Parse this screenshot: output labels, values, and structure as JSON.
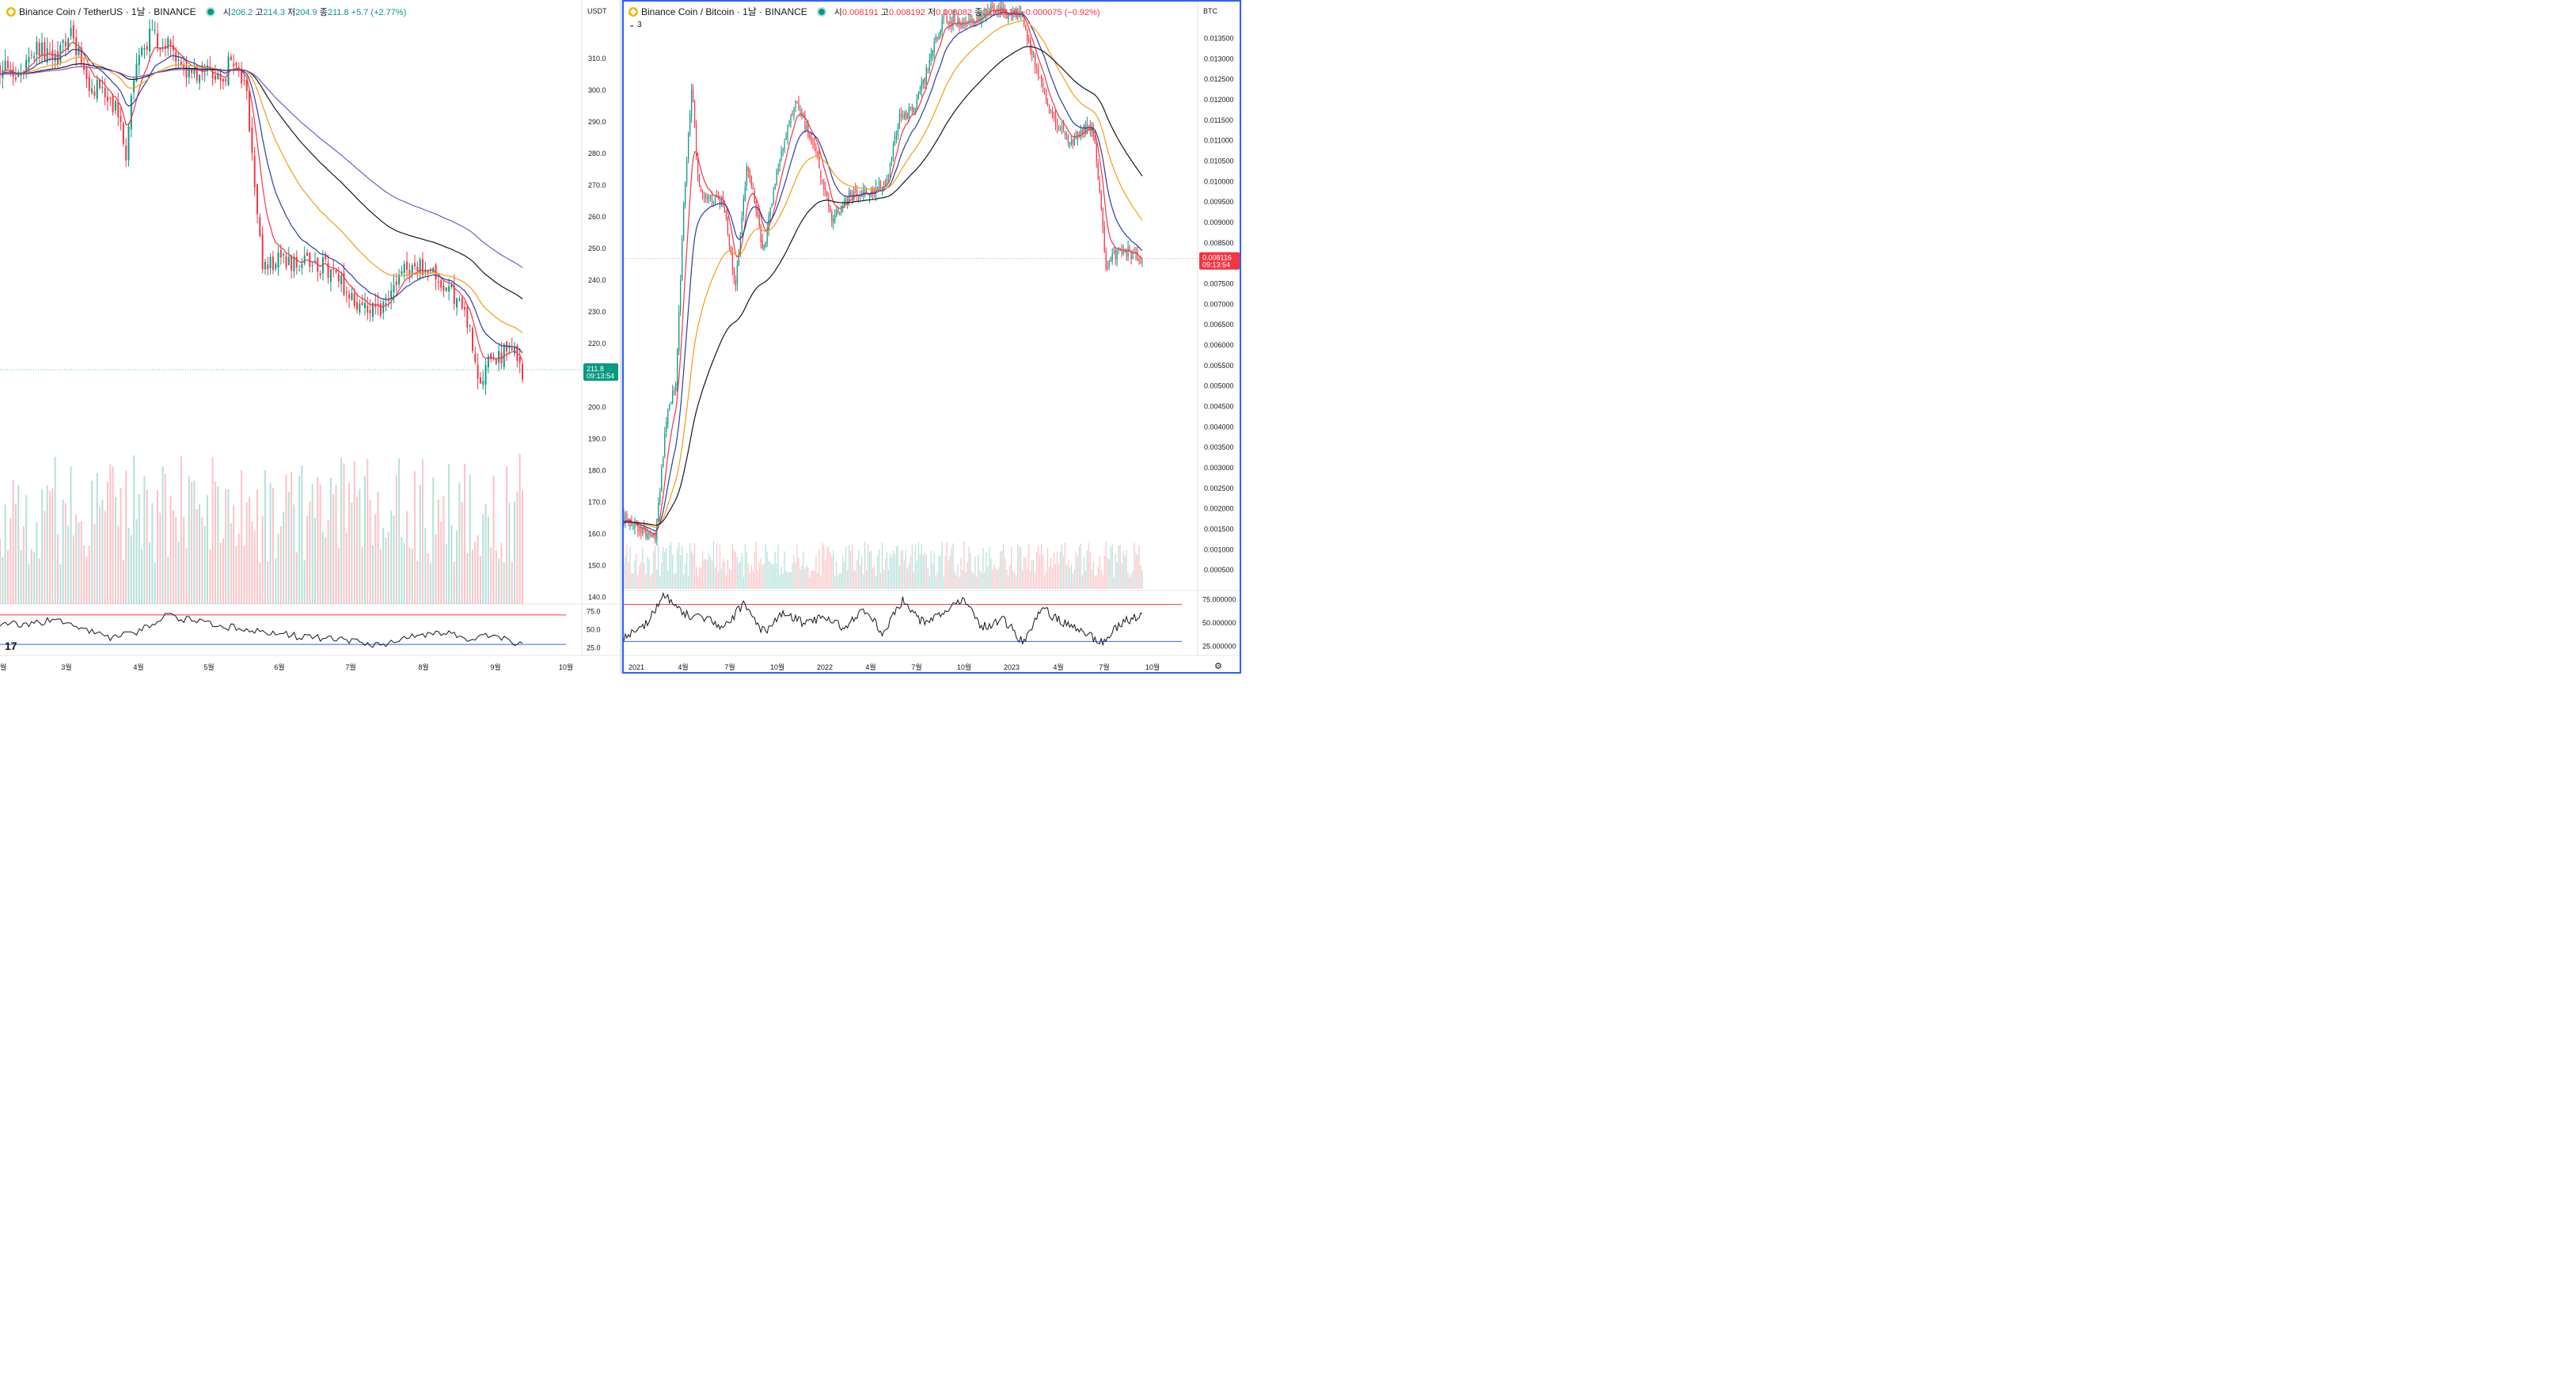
{
  "left": {
    "symbol": "Binance Coin / TetherUS · 1날 · BINANCE",
    "ohlc": {
      "o_label": "시",
      "o": "206.2",
      "h_label": "고",
      "h": "214.3",
      "l_label": "저",
      "l": "204.9",
      "c_label": "종",
      "c": "211.8",
      "chg": "+5.7 (+2.77%)"
    },
    "unit": "USDT",
    "last_price": "211.8",
    "countdown": "09:13:54",
    "rsi_ticks": [
      "75.0",
      "50.0",
      "25.0"
    ],
    "x_ticks": [
      "월",
      "3월",
      "4월",
      "5월",
      "6월",
      "7월",
      "8월",
      "9월",
      "10월"
    ]
  },
  "right": {
    "symbol": "Binance Coin / Bitcoin · 1날 · BINANCE",
    "ohlc": {
      "o_label": "시",
      "o": "0.008191",
      "h_label": "고",
      "h": "0.008192",
      "l_label": "저",
      "l": "0.008082",
      "c_label": "종",
      "c": "0.008116",
      "chg": "−0.000075 (−0.92%)"
    },
    "unit": "BTC",
    "indicator_count": "3",
    "last_price": "0.008116",
    "countdown": "09:13:54",
    "rsi_ticks": [
      "75.000000",
      "50.000000",
      "25.000000"
    ],
    "x_ticks": [
      "2021",
      "4월",
      "7월",
      "10월",
      "2022",
      "4월",
      "7월",
      "10월",
      "2023",
      "4월",
      "7월",
      "10월"
    ]
  },
  "colors": {
    "up": "#089981",
    "down": "#f23645",
    "ema_red": "#f23645",
    "ema_blue": "#2a3e9e",
    "ema_orange": "#f59c1a",
    "ema_black": "#131722",
    "ema_purple": "#7e57c2",
    "rsi_band": "#f23645",
    "rsi_low": "#2962ff"
  },
  "chart_data": [
    {
      "type": "candlestick",
      "title": "Binance Coin / TetherUS · 1날 · BINANCE",
      "ylabel": "USDT",
      "ylim": [
        137,
        318
      ],
      "y_ticks": [
        140,
        150,
        160,
        170,
        180,
        190,
        200,
        210,
        220,
        230,
        240,
        250,
        260,
        270,
        280,
        290,
        300,
        310
      ],
      "x_ticks": [
        "월",
        "3월",
        "4월",
        "5월",
        "6월",
        "7월",
        "8월",
        "9월",
        "10월"
      ],
      "close_path": [
        [
          0,
          308
        ],
        [
          8,
          305
        ],
        [
          15,
          315
        ],
        [
          22,
          308
        ],
        [
          30,
          318
        ],
        [
          36,
          300
        ],
        [
          42,
          302
        ],
        [
          48,
          293
        ],
        [
          50,
          287
        ],
        [
          52,
          277
        ],
        [
          55,
          305
        ],
        [
          62,
          318
        ],
        [
          70,
          313
        ],
        [
          78,
          305
        ],
        [
          85,
          306
        ],
        [
          92,
          303
        ],
        [
          94,
          309
        ],
        [
          98,
          305
        ],
        [
          101,
          303
        ],
        [
          108,
          243
        ],
        [
          115,
          247
        ],
        [
          122,
          245
        ],
        [
          130,
          245
        ],
        [
          138,
          243
        ],
        [
          146,
          232
        ],
        [
          152,
          232
        ],
        [
          158,
          231
        ],
        [
          166,
          244
        ],
        [
          174,
          244
        ],
        [
          182,
          240
        ],
        [
          190,
          232
        ],
        [
          196,
          216
        ],
        [
          198,
          203
        ],
        [
          200,
          213
        ],
        [
          204,
          214
        ],
        [
          208,
          218
        ],
        [
          212,
          217
        ],
        [
          215,
          210
        ]
      ],
      "rsi": [
        60,
        55,
        65,
        50,
        40,
        45,
        70,
        62,
        55,
        50,
        45,
        40,
        38,
        32,
        30,
        42,
        47,
        38,
        43,
        28
      ]
    },
    {
      "type": "candlestick",
      "title": "Binance Coin / Bitcoin · 1날 · BINANCE",
      "ylabel": "BTC",
      "ylim": [
        0.0,
        0.01405
      ],
      "y_ticks": [
        0.0005,
        0.001,
        0.0015,
        0.002,
        0.0025,
        0.003,
        0.0035,
        0.004,
        0.0045,
        0.005,
        0.0055,
        0.006,
        0.0065,
        0.007,
        0.0075,
        0.008,
        0.0085,
        0.009,
        0.0095,
        0.01,
        0.0105,
        0.011,
        0.0115,
        0.012,
        0.0125,
        0.013,
        0.0135
      ],
      "x_ticks": [
        "2021",
        "4월",
        "7월",
        "10월",
        "2022",
        "4월",
        "7월",
        "10월",
        "2023",
        "4월",
        "7월",
        "10월"
      ],
      "close_path": [
        [
          0,
          0.0018
        ],
        [
          40,
          0.0013
        ],
        [
          55,
          0.0045
        ],
        [
          65,
          0.0049
        ],
        [
          75,
          0.0095
        ],
        [
          85,
          0.0123
        ],
        [
          95,
          0.0097
        ],
        [
          110,
          0.0096
        ],
        [
          125,
          0.0095
        ],
        [
          140,
          0.0075
        ],
        [
          155,
          0.0105
        ],
        [
          175,
          0.0083
        ],
        [
          190,
          0.01
        ],
        [
          215,
          0.012
        ],
        [
          240,
          0.0108
        ],
        [
          260,
          0.0091
        ],
        [
          285,
          0.0097
        ],
        [
          310,
          0.0098
        ],
        [
          330,
          0.01
        ],
        [
          345,
          0.0115
        ],
        [
          365,
          0.0118
        ],
        [
          380,
          0.0127
        ],
        [
          400,
          0.014
        ],
        [
          430,
          0.0138
        ],
        [
          460,
          0.0143
        ],
        [
          480,
          0.0141
        ],
        [
          500,
          0.014
        ],
        [
          520,
          0.0125
        ],
        [
          540,
          0.0115
        ],
        [
          560,
          0.011
        ],
        [
          580,
          0.0113
        ],
        [
          590,
          0.0112
        ],
        [
          595,
          0.01
        ],
        [
          605,
          0.0078
        ],
        [
          615,
          0.0082
        ],
        [
          630,
          0.0083
        ],
        [
          650,
          0.0081
        ]
      ],
      "rsi": [
        35,
        45,
        80,
        60,
        55,
        45,
        70,
        40,
        60,
        50,
        55,
        45,
        65,
        40,
        75,
        50,
        60,
        75,
        45,
        55,
        30,
        65,
        50,
        40,
        30,
        50,
        60
      ]
    }
  ]
}
